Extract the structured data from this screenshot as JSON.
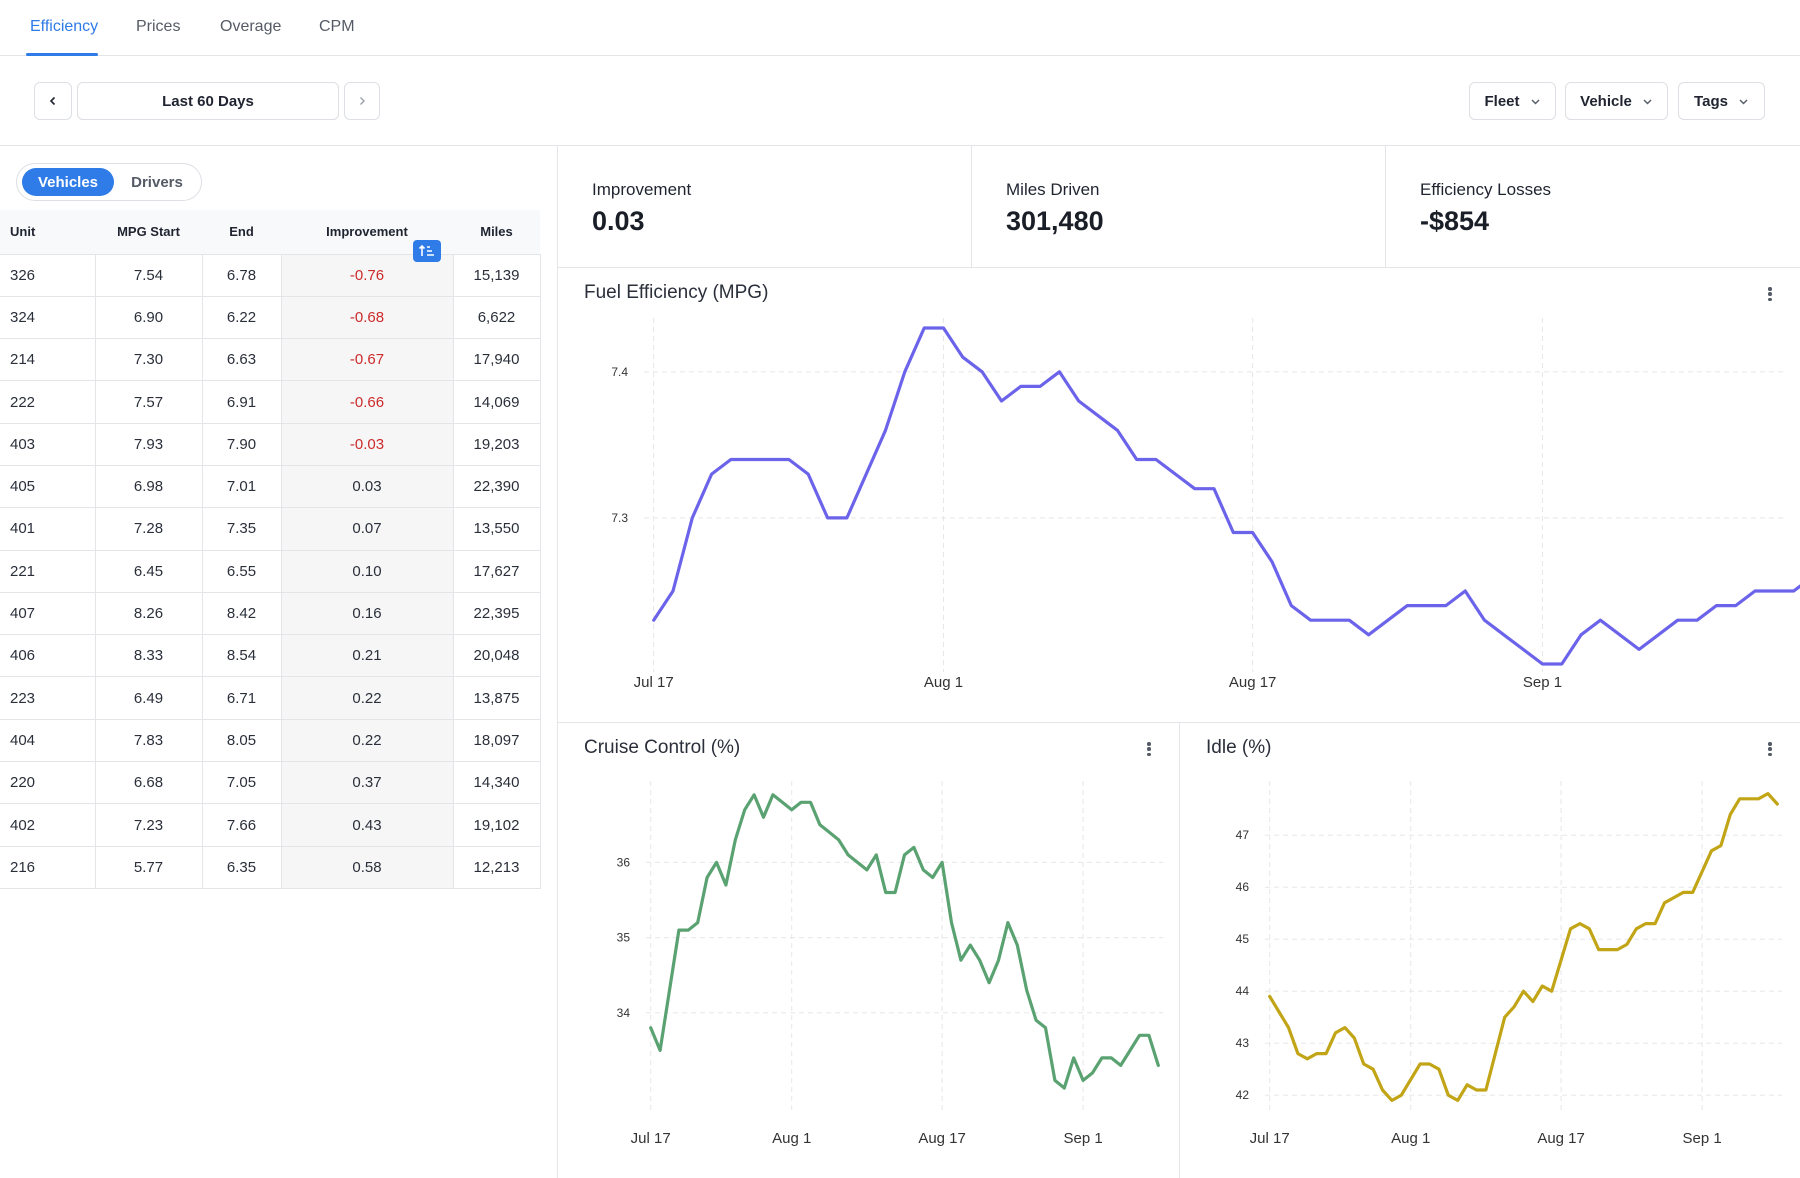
{
  "tabs": [
    {
      "label": "Efficiency",
      "active": true
    },
    {
      "label": "Prices",
      "active": false
    },
    {
      "label": "Overage",
      "active": false
    },
    {
      "label": "CPM",
      "active": false
    }
  ],
  "toolbar": {
    "date_range": "Last 60 Days",
    "filters": [
      "Fleet",
      "Vehicle",
      "Tags"
    ]
  },
  "segmented": {
    "options": [
      "Vehicles",
      "Drivers"
    ],
    "selected": "Vehicles"
  },
  "table": {
    "columns": [
      "Unit",
      "MPG Start",
      "End",
      "Improvement",
      "Miles"
    ],
    "sorted_by": "Improvement",
    "rows": [
      [
        "326",
        "7.54",
        "6.78",
        "-0.76",
        "15,139"
      ],
      [
        "324",
        "6.90",
        "6.22",
        "-0.68",
        "6,622"
      ],
      [
        "214",
        "7.30",
        "6.63",
        "-0.67",
        "17,940"
      ],
      [
        "222",
        "7.57",
        "6.91",
        "-0.66",
        "14,069"
      ],
      [
        "403",
        "7.93",
        "7.90",
        "-0.03",
        "19,203"
      ],
      [
        "405",
        "6.98",
        "7.01",
        "0.03",
        "22,390"
      ],
      [
        "401",
        "7.28",
        "7.35",
        "0.07",
        "13,550"
      ],
      [
        "221",
        "6.45",
        "6.55",
        "0.10",
        "17,627"
      ],
      [
        "407",
        "8.26",
        "8.42",
        "0.16",
        "22,395"
      ],
      [
        "406",
        "8.33",
        "8.54",
        "0.21",
        "20,048"
      ],
      [
        "223",
        "6.49",
        "6.71",
        "0.22",
        "13,875"
      ],
      [
        "404",
        "7.83",
        "8.05",
        "0.22",
        "18,097"
      ],
      [
        "220",
        "6.68",
        "7.05",
        "0.37",
        "14,340"
      ],
      [
        "402",
        "7.23",
        "7.66",
        "0.43",
        "19,102"
      ],
      [
        "216",
        "5.77",
        "6.35",
        "0.58",
        "12,213"
      ]
    ]
  },
  "kpis": [
    {
      "label": "Improvement",
      "value": "0.03"
    },
    {
      "label": "Miles Driven",
      "value": "301,480"
    },
    {
      "label": "Efficiency Losses",
      "value": "-$854"
    }
  ],
  "colors": {
    "accent": "#2f7be8",
    "negative": "#cc2b2b",
    "fuel": "#6b63ea",
    "cruise": "#5aa271",
    "idle": "#c2a516"
  },
  "icons": [
    "chevron-left-icon",
    "chevron-right-icon",
    "chevron-down-icon",
    "sort-ascending-icon",
    "kebab-menu-icon"
  ],
  "chart_data": [
    {
      "type": "line",
      "title": "Fuel Efficiency (MPG)",
      "x_tick_labels": [
        "Jul 17",
        "Aug 1",
        "Aug 17",
        "Sep 1"
      ],
      "y_ticks": [
        "7.3",
        "7.4"
      ],
      "y_tick_values": [
        7.3,
        7.4
      ],
      "ylim": [
        7.2,
        7.43
      ],
      "xlim": [
        -0.5,
        58.5
      ],
      "x_tick_positions": [
        0,
        15,
        31,
        46
      ],
      "grid": true,
      "series": [
        {
          "values": [
            7.23,
            7.25,
            7.3,
            7.33,
            7.34,
            7.34,
            7.34,
            7.34,
            7.33,
            7.3,
            7.3,
            7.33,
            7.36,
            7.4,
            7.43,
            7.43,
            7.41,
            7.4,
            7.38,
            7.39,
            7.39,
            7.4,
            7.38,
            7.37,
            7.36,
            7.34,
            7.34,
            7.33,
            7.32,
            7.32,
            7.29,
            7.29,
            7.27,
            7.24,
            7.23,
            7.23,
            7.23,
            7.22,
            7.23,
            7.24,
            7.24,
            7.24,
            7.25,
            7.23,
            7.22,
            7.21,
            7.2,
            7.2,
            7.22,
            7.23,
            7.22,
            7.21,
            7.22,
            7.23,
            7.23,
            7.24,
            7.24,
            7.25,
            7.25,
            7.25,
            7.26
          ]
        }
      ]
    },
    {
      "type": "line",
      "title": "Cruise Control (%)",
      "x_tick_labels": [
        "Jul 17",
        "Aug 1",
        "Aug 17",
        "Sep 1"
      ],
      "y_ticks": [
        "34",
        "35",
        "36"
      ],
      "y_tick_values": [
        34,
        35,
        36
      ],
      "ylim": [
        32.8,
        36.95
      ],
      "xlim": [
        -0.5,
        54.5
      ],
      "x_tick_positions": [
        0,
        15,
        31,
        46
      ],
      "grid": true,
      "series": [
        {
          "values": [
            33.8,
            33.5,
            34.3,
            35.1,
            35.1,
            35.2,
            35.8,
            36.0,
            35.7,
            36.3,
            36.7,
            36.9,
            36.6,
            36.9,
            36.8,
            36.7,
            36.8,
            36.8,
            36.5,
            36.4,
            36.3,
            36.1,
            36.0,
            35.9,
            36.1,
            35.6,
            35.6,
            36.1,
            36.2,
            35.9,
            35.8,
            36.0,
            35.2,
            34.7,
            34.9,
            34.7,
            34.4,
            34.7,
            35.2,
            34.9,
            34.3,
            33.9,
            33.8,
            33.1,
            33.0,
            33.4,
            33.1,
            33.2,
            33.4,
            33.4,
            33.3,
            33.5,
            33.7,
            33.7,
            33.3
          ]
        }
      ]
    },
    {
      "type": "line",
      "title": "Idle (%)",
      "x_tick_labels": [
        "Jul 17",
        "Aug 1",
        "Aug 17",
        "Sep 1"
      ],
      "y_ticks": [
        "42",
        "43",
        "44",
        "45",
        "46",
        "47"
      ],
      "y_tick_values": [
        42,
        43,
        44,
        45,
        46,
        47
      ],
      "ylim": [
        41.85,
        47.85
      ],
      "xlim": [
        -0.5,
        54.5
      ],
      "x_tick_positions": [
        0,
        15,
        31,
        46
      ],
      "grid": true,
      "series": [
        {
          "values": [
            43.9,
            43.6,
            43.3,
            42.8,
            42.7,
            42.8,
            42.8,
            43.2,
            43.3,
            43.1,
            42.6,
            42.5,
            42.1,
            41.9,
            42.0,
            42.3,
            42.6,
            42.6,
            42.5,
            42.0,
            41.9,
            42.2,
            42.1,
            42.1,
            42.8,
            43.5,
            43.7,
            44.0,
            43.8,
            44.1,
            44.0,
            44.6,
            45.2,
            45.3,
            45.2,
            44.8,
            44.8,
            44.8,
            44.9,
            45.2,
            45.3,
            45.3,
            45.7,
            45.8,
            45.9,
            45.9,
            46.3,
            46.7,
            46.8,
            47.4,
            47.7,
            47.7,
            47.7,
            47.8,
            47.6
          ]
        }
      ]
    }
  ]
}
